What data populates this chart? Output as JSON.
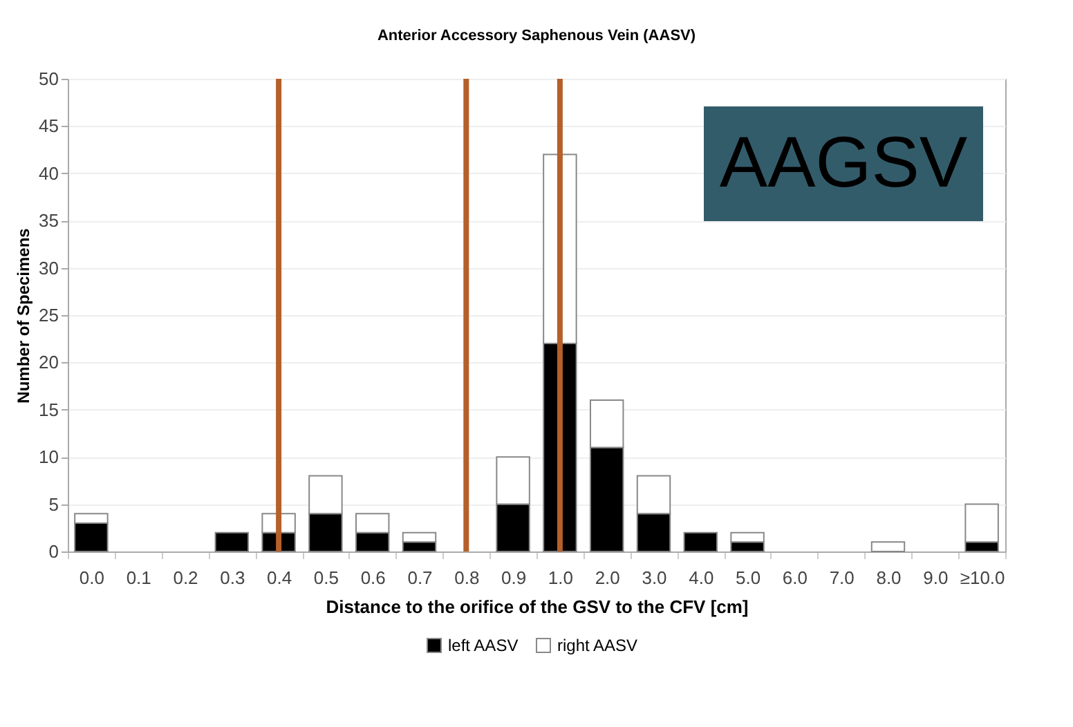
{
  "chart_data": {
    "type": "bar",
    "title": "Anterior Accessory Saphenous Vein (AASV)",
    "xlabel": "Distance to the orifice of the GSV to the CFV [cm]",
    "ylabel": "Number of Specimens",
    "categories": [
      "0.0",
      "0.1",
      "0.2",
      "0.3",
      "0.4",
      "0.5",
      "0.6",
      "0.7",
      "0.8",
      "0.9",
      "1.0",
      "2.0",
      "3.0",
      "4.0",
      "5.0",
      "6.0",
      "7.0",
      "8.0",
      "9.0",
      "≥10.0"
    ],
    "series": [
      {
        "name": "left AASV",
        "color": "#000000",
        "values": [
          3,
          0,
          0,
          2,
          2,
          4,
          2,
          1,
          0,
          5,
          22,
          11,
          4,
          2,
          1,
          0,
          0,
          0,
          0,
          1
        ]
      },
      {
        "name": "right AASV",
        "color": "#ffffff",
        "values": [
          1,
          0,
          0,
          0,
          2,
          4,
          2,
          1,
          0,
          5,
          20,
          5,
          4,
          0,
          1,
          0,
          0,
          1,
          0,
          4
        ]
      }
    ],
    "stacked": true,
    "ylim": [
      0,
      50
    ],
    "yticks": [
      0,
      5,
      10,
      15,
      20,
      25,
      30,
      35,
      40,
      45,
      50
    ],
    "grid": "y",
    "legend": "bottom",
    "ref_lines": [
      {
        "axis": "x",
        "value": "0.4",
        "color": "#b5602a"
      },
      {
        "axis": "x",
        "value": "0.8",
        "color": "#b5602a"
      },
      {
        "axis": "x",
        "value": "1.0",
        "color": "#b5602a"
      }
    ],
    "annotations": [
      "AAGSV"
    ]
  }
}
